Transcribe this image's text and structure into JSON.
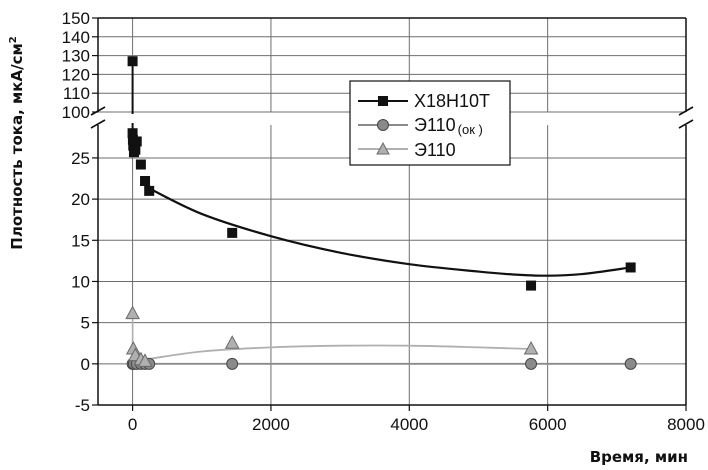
{
  "chart_data": {
    "type": "scatter",
    "xlabel": "Время, мин",
    "ylabel": "Плотность тока, мкА/см",
    "ylabel_sup": "2",
    "xlim": [
      -500,
      8000
    ],
    "ylim_lower": [
      -5,
      29
    ],
    "ylim_upper": [
      100,
      150
    ],
    "axis_break": "y between 29 and 100",
    "grid": true,
    "legend_position": "top-center",
    "x_ticks": [
      "0",
      "2000",
      "4000",
      "6000",
      "8000"
    ],
    "y_ticks_lower": [
      "-5",
      "0",
      "5",
      "10",
      "15",
      "20",
      "25"
    ],
    "y_ticks_upper": [
      "100",
      "110",
      "120",
      "130",
      "140",
      "150"
    ],
    "series": [
      {
        "name": "X18H10T",
        "marker": "square",
        "color": "#111111",
        "points": [
          [
            0,
            127
          ],
          [
            0,
            28
          ],
          [
            5,
            27.2
          ],
          [
            10,
            26.5
          ],
          [
            20,
            25.7
          ],
          [
            40,
            26
          ],
          [
            60,
            27
          ],
          [
            120,
            24.2
          ],
          [
            180,
            22.2
          ],
          [
            240,
            21
          ],
          [
            1440,
            15.9
          ],
          [
            5760,
            9.5
          ],
          [
            7200,
            11.7
          ]
        ],
        "fit": [
          [
            240,
            21.3
          ],
          [
            1000,
            18.2
          ],
          [
            2000,
            15.5
          ],
          [
            3000,
            13.5
          ],
          [
            4000,
            12.1
          ],
          [
            5000,
            11.2
          ],
          [
            5500,
            10.85
          ],
          [
            6000,
            10.7
          ],
          [
            6500,
            10.9
          ],
          [
            7200,
            11.7
          ]
        ]
      },
      {
        "name_main": "Э110",
        "name_sub": "(ок )",
        "marker": "circle",
        "color": "#8a8a8a",
        "points": [
          [
            0,
            0
          ],
          [
            20,
            0
          ],
          [
            60,
            0
          ],
          [
            120,
            0
          ],
          [
            180,
            0
          ],
          [
            240,
            0
          ],
          [
            1440,
            0
          ],
          [
            5760,
            0
          ],
          [
            7200,
            0
          ]
        ],
        "fit": [
          [
            0,
            0
          ],
          [
            7200,
            0
          ]
        ]
      },
      {
        "name": "Э110",
        "marker": "triangle",
        "color": "#b0b0b0",
        "points": [
          [
            0,
            6.1
          ],
          [
            10,
            1.8
          ],
          [
            40,
            1
          ],
          [
            120,
            0.5
          ],
          [
            180,
            0.3
          ],
          [
            1440,
            2.5
          ],
          [
            5760,
            1.8
          ]
        ],
        "fit": [
          [
            0,
            0.3
          ],
          [
            240,
            0.6
          ],
          [
            1000,
            1.5
          ],
          [
            2000,
            2
          ],
          [
            3000,
            2.2
          ],
          [
            4000,
            2.2
          ],
          [
            5000,
            2
          ],
          [
            5760,
            1.8
          ]
        ]
      }
    ]
  }
}
